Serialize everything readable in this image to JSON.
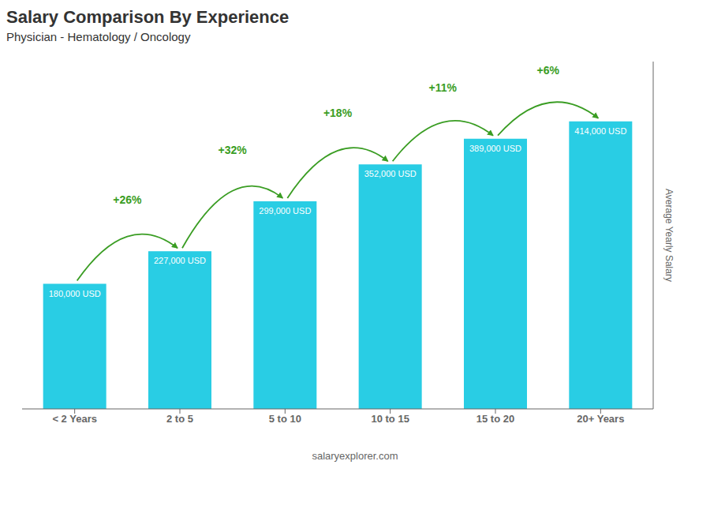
{
  "chart_data": {
    "type": "bar",
    "title": "Salary Comparison By Experience",
    "subtitle": "Physician - Hematology / Oncology",
    "y_label": "Average Yearly Salary",
    "categories": [
      "< 2 Years",
      "2 to 5",
      "5 to 10",
      "10 to 15",
      "15 to 20",
      "20+ Years"
    ],
    "values": [
      180000,
      227000,
      299000,
      352000,
      389000,
      414000
    ],
    "value_labels": [
      "180,000 USD",
      "227,000 USD",
      "299,000 USD",
      "352,000 USD",
      "389,000 USD",
      "414,000 USD"
    ],
    "data_labels": true,
    "color": "#29cde4",
    "ylim": [
      0,
      500000
    ],
    "yticks": [],
    "tick_labels": "x",
    "grid": false,
    "annotations": [
      "+26%",
      "+32%",
      "+18%",
      "+11%",
      "+6%"
    ],
    "footer": "salaryexplorer.com"
  }
}
